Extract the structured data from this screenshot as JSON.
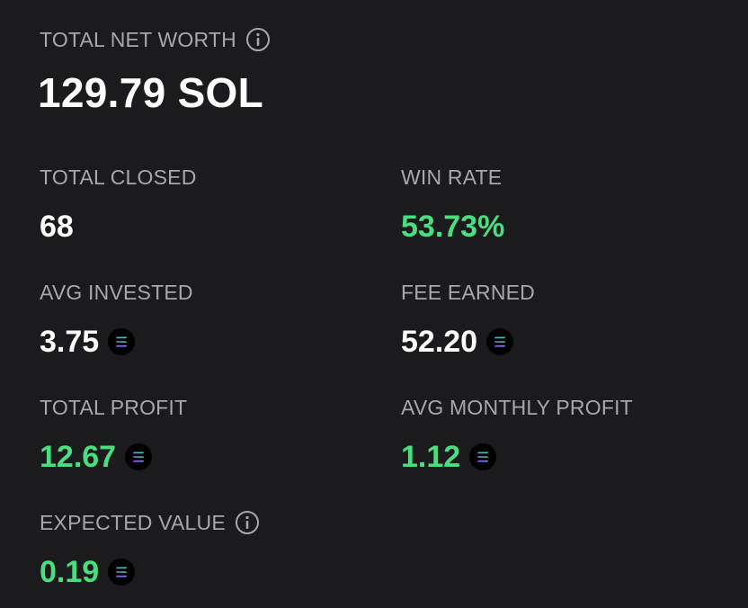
{
  "net_worth": {
    "label": "TOTAL NET WORTH",
    "info_icon": "info-icon",
    "value": "129.79 SOL"
  },
  "stats": {
    "total_closed": {
      "label": "TOTAL CLOSED",
      "value": "68"
    },
    "win_rate": {
      "label": "WIN RATE",
      "value": "53.73%"
    },
    "avg_invested": {
      "label": "AVG INVESTED",
      "value": "3.75",
      "icon": "solana-icon"
    },
    "fee_earned": {
      "label": "FEE EARNED",
      "value": "52.20",
      "icon": "solana-icon"
    },
    "total_profit": {
      "label": "TOTAL PROFIT",
      "value": "12.67",
      "icon": "solana-icon"
    },
    "avg_monthly_profit": {
      "label": "AVG MONTHLY PROFIT",
      "value": "1.12",
      "icon": "solana-icon"
    },
    "expected_value": {
      "label": "EXPECTED VALUE",
      "value": "0.19",
      "icon": "solana-icon",
      "info_icon": "info-icon"
    }
  },
  "colors": {
    "background": "#1b1b1d",
    "label": "#a7a7ac",
    "value": "#ffffff",
    "positive": "#4ade80"
  }
}
